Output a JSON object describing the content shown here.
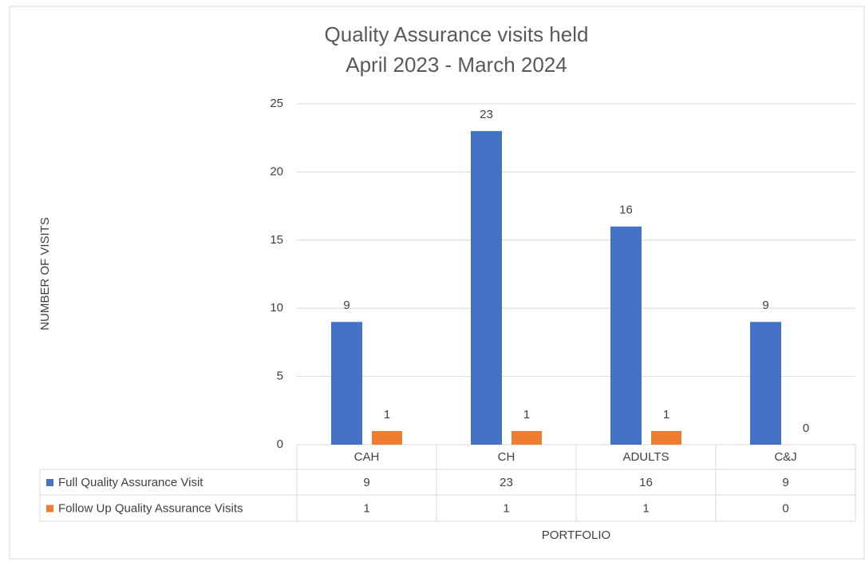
{
  "chart_data": {
    "type": "bar",
    "title": "Quality Assurance visits held",
    "subtitle": "April 2023 - March 2024",
    "y_label": "NUMBER  OF VISITS",
    "x_label": "PORTFOLIO",
    "categories": [
      "CAH",
      "CH",
      "ADULTS",
      "C&J"
    ],
    "series": [
      {
        "name": "Full Quality Assurance Visit",
        "color": "#4472c4",
        "values": [
          9,
          23,
          16,
          9
        ]
      },
      {
        "name": "Follow Up Quality Assurance Visits",
        "color": "#ed7d31",
        "values": [
          1,
          1,
          1,
          0
        ]
      }
    ],
    "ylim": [
      0,
      25
    ],
    "yticks": [
      0,
      5,
      10,
      15,
      20,
      25
    ],
    "grid": true,
    "data_table": true
  }
}
